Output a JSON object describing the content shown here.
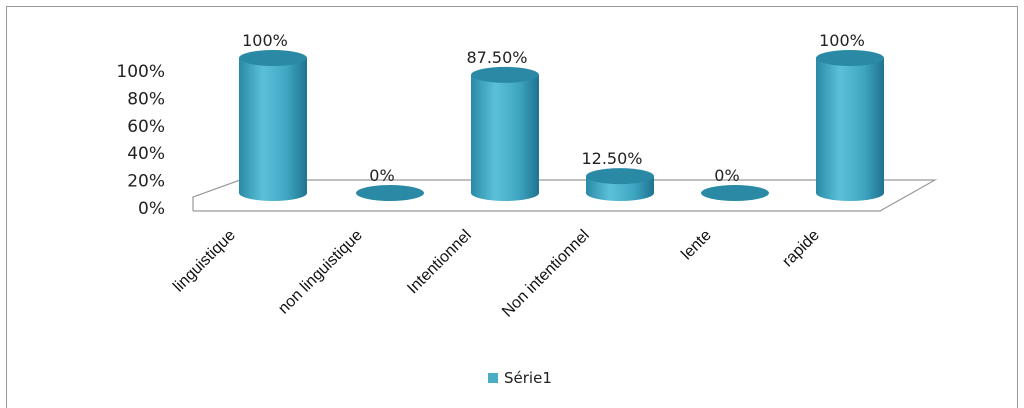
{
  "chart_data": {
    "type": "bar",
    "style": "3d-cylinder",
    "categories": [
      "linguistique",
      "non linguistique",
      "Intentionnel",
      "Non intentionnel",
      "lente",
      "rapide"
    ],
    "series": [
      {
        "name": "Série1",
        "values": [
          100,
          0,
          87.5,
          12.5,
          0,
          100
        ],
        "color": "#4bacc6"
      }
    ],
    "data_labels": [
      "100%",
      "0%",
      "87.50%",
      "12.50%",
      "0%",
      "100%"
    ],
    "y_ticks": [
      "0%",
      "20%",
      "40%",
      "60%",
      "80%",
      "100%"
    ],
    "ylim": [
      0,
      100
    ],
    "legend_position": "bottom",
    "grid": false
  }
}
